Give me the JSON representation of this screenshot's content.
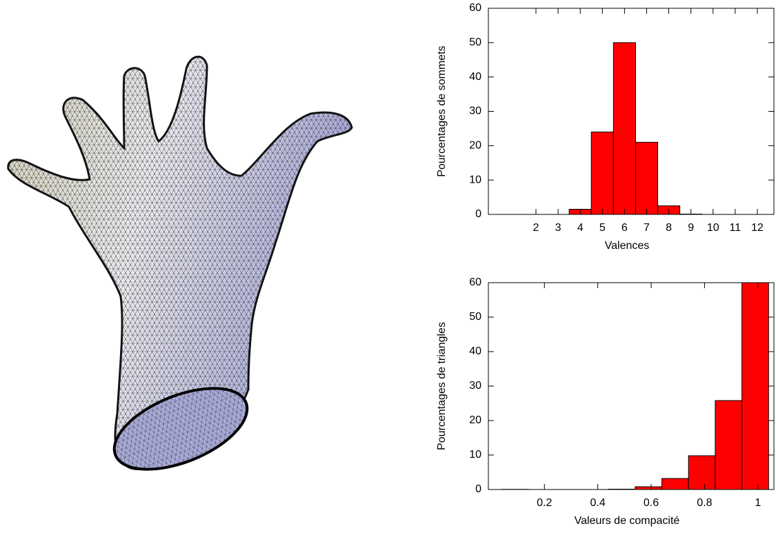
{
  "chart_data": [
    {
      "type": "histogram",
      "bins": [
        -0.5,
        0.5,
        1.5,
        2.5,
        3.5,
        4.5,
        5.5,
        6.5,
        7.5,
        8.5,
        9.5,
        10.5,
        11.5,
        12.5
      ],
      "values": [
        0,
        0,
        0,
        0,
        1.5,
        24,
        50,
        21,
        2.5,
        0.1,
        0,
        0,
        0
      ],
      "color": "#ff0000",
      "xlim": [
        -0.15,
        12.75
      ],
      "xticks": [
        2,
        3,
        4,
        5,
        6,
        7,
        8,
        9,
        10,
        11,
        12
      ],
      "ylim": [
        0,
        60
      ],
      "yticks": [
        0,
        10,
        20,
        30,
        40,
        50,
        60
      ],
      "x_label": "Valences",
      "y_label": "Pourcentages de sommets"
    },
    {
      "type": "histogram",
      "bins": [
        0.04,
        0.14,
        0.24,
        0.34,
        0.44,
        0.54,
        0.64,
        0.74,
        0.84,
        0.94,
        1.04
      ],
      "values": [
        0.05,
        0,
        0,
        0,
        0.1,
        0.8,
        3.2,
        9.8,
        25.8,
        60
      ],
      "color": "#ff0000",
      "xlim": [
        -0.01,
        1.06
      ],
      "xticks": [
        0.2,
        0.4,
        0.6,
        0.8,
        1
      ],
      "ylim": [
        0,
        60
      ],
      "yticks": [
        0,
        10,
        20,
        30,
        40,
        50,
        60
      ],
      "x_label": "Valeurs de compacité",
      "y_label": "Pourcentages de triangles"
    }
  ]
}
